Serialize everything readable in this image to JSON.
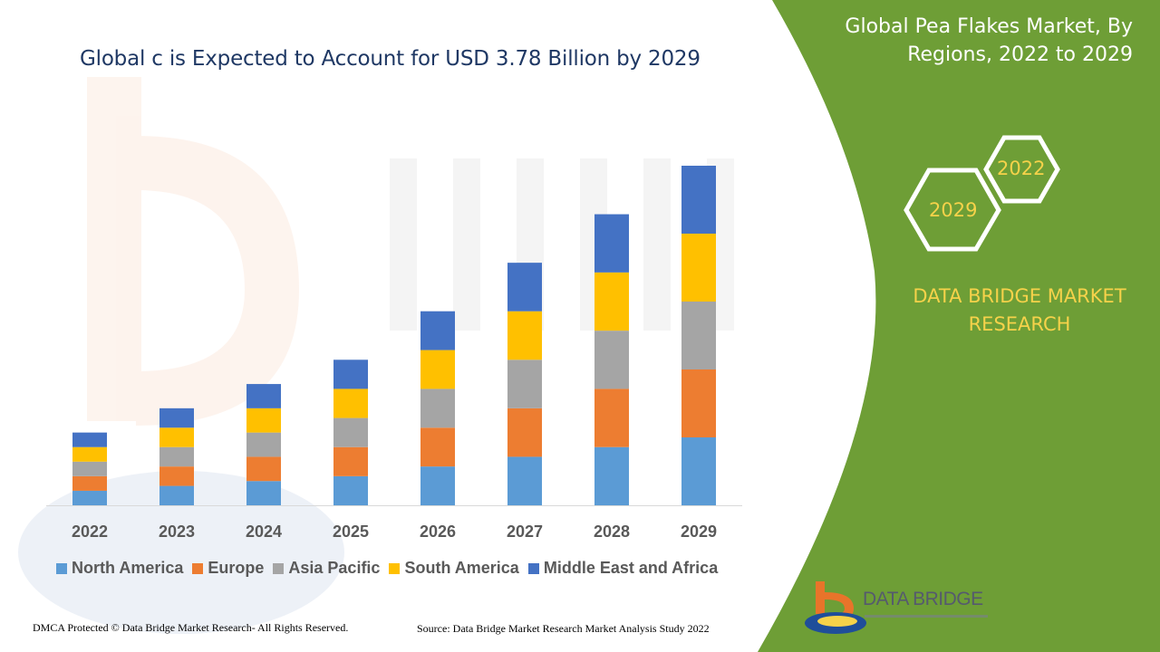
{
  "header": {
    "chart_title": "Global c is Expected to Account for USD 3.78 Billion by 2029",
    "panel_title_line1": "Global Pea Flakes Market, By",
    "panel_title_line2": "Regions, 2022 to 2029"
  },
  "badges": {
    "year_start": "2022",
    "year_end": "2029"
  },
  "brand": {
    "line1": "DATA BRIDGE MARKET",
    "line2": "RESEARCH",
    "logo_name": "DATA BRIDGE"
  },
  "footer": {
    "copyright": "DMCA Protected © Data Bridge Market Research- All Rights Reserved.",
    "source": "Source: Data Bridge Market Research Market Analysis Study 2022"
  },
  "colors": {
    "panel_green": "#6e9e36",
    "accent_yellow": "#f6d24a",
    "title_navy": "#1f3864"
  },
  "chart_data": {
    "type": "bar",
    "stacked": true,
    "title": "Global c is Expected to Account for USD 3.78 Billion by 2029",
    "categories": [
      "2022",
      "2023",
      "2024",
      "2025",
      "2026",
      "2027",
      "2028",
      "2029"
    ],
    "series": [
      {
        "name": "North America",
        "color": "#5b9bd5",
        "values": [
          15,
          20,
          25,
          30,
          40,
          50,
          60,
          70
        ]
      },
      {
        "name": "Europe",
        "color": "#ed7d31",
        "values": [
          15,
          20,
          25,
          30,
          40,
          50,
          60,
          70
        ]
      },
      {
        "name": "Asia Pacific",
        "color": "#a5a5a5",
        "values": [
          15,
          20,
          25,
          30,
          40,
          50,
          60,
          70
        ]
      },
      {
        "name": "South America",
        "color": "#ffc000",
        "values": [
          15,
          20,
          25,
          30,
          40,
          50,
          60,
          70
        ]
      },
      {
        "name": "Middle East and Africa",
        "color": "#4472c4",
        "values": [
          15,
          20,
          25,
          30,
          40,
          50,
          60,
          70
        ]
      }
    ],
    "ylim": [
      0,
      350
    ],
    "grid": false,
    "legend": "bottom"
  }
}
